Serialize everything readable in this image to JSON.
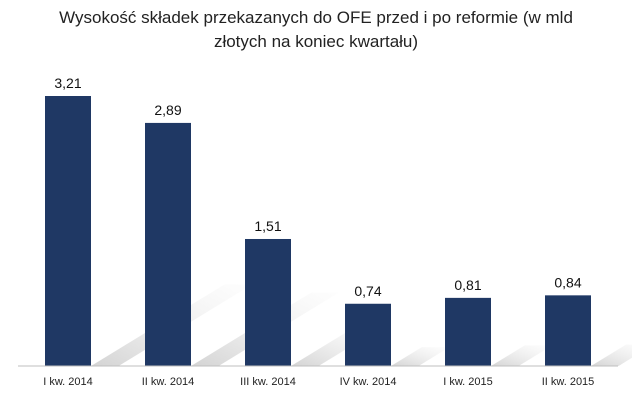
{
  "chart_data": {
    "type": "bar",
    "title": "Wysokość składek przekazanych do OFE przed i po reformie (w mld złotych na koniec kwartału)",
    "categories": [
      "I kw. 2014",
      "II kw. 2014",
      "III kw. 2014",
      "IV kw. 2014",
      "I kw. 2015",
      "II kw. 2015"
    ],
    "values": [
      3.21,
      2.89,
      1.51,
      0.74,
      0.81,
      0.84
    ],
    "value_labels": [
      "3,21",
      "2,89",
      "1,51",
      "0,74",
      "0,81",
      "0,84"
    ],
    "xlabel": "",
    "ylabel": "",
    "ylim": [
      0,
      3.21
    ],
    "grid": false,
    "legend": "none",
    "colors": {
      "bar": "#1F3864",
      "shadow": "#c8c8c8",
      "axis": "#bfbfbf"
    }
  }
}
